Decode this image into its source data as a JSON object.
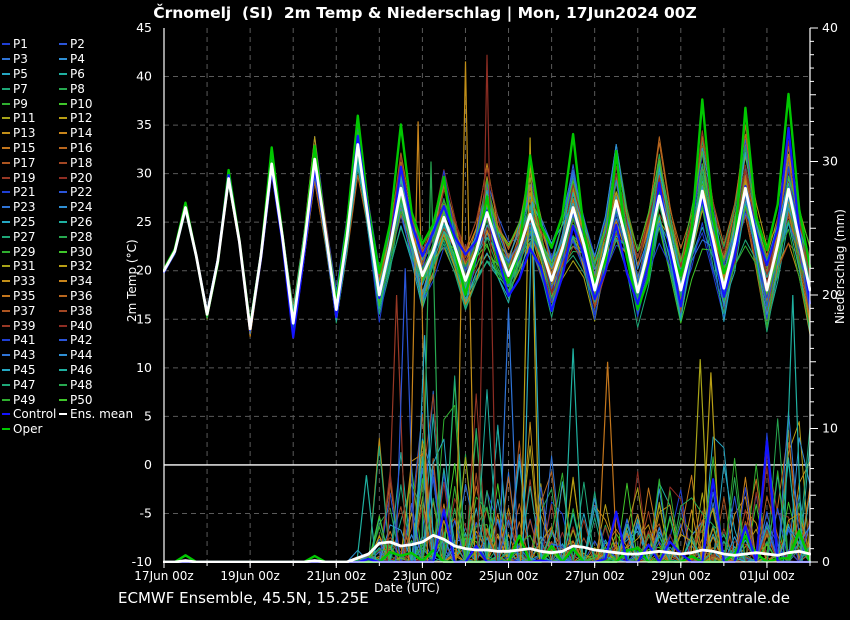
{
  "title": "Črnomelj  (SI)  2m Temp & Niederschlag | Mon, 17Jun2024 00Z",
  "footer": {
    "left": "ECMWF Ensemble, 45.5N, 15.25E",
    "right": "Wetterzentrale.de"
  },
  "legend": {
    "members": [
      "P1",
      "P2",
      "P3",
      "P4",
      "P5",
      "P6",
      "P7",
      "P8",
      "P9",
      "P10",
      "P11",
      "P12",
      "P13",
      "P14",
      "P15",
      "P16",
      "P17",
      "P18",
      "P19",
      "P20",
      "P21",
      "P22",
      "P23",
      "P24",
      "P25",
      "P26",
      "P27",
      "P28",
      "P29",
      "P30",
      "P31",
      "P32",
      "P33",
      "P34",
      "P35",
      "P36",
      "P37",
      "P38",
      "P39",
      "P40",
      "P41",
      "P42",
      "P43",
      "P44",
      "P45",
      "P46",
      "P47",
      "P48",
      "P49",
      "P50"
    ],
    "control_label": "Control",
    "ens_mean_label": "Ens. mean",
    "oper_label": "Oper"
  },
  "chart_data": {
    "type": "line",
    "title": "Črnomelj (SI) 2m Temp & Niederschlag | Mon, 17Jun2024 00Z",
    "xlabel": "Date (UTC)",
    "ylabel_left": "2m Temp (°C)",
    "ylabel_right": "Niederschlag (mm)",
    "x_range_days": [
      0,
      15
    ],
    "x_tick_days": [
      0,
      2,
      4,
      6,
      8,
      10,
      12,
      14
    ],
    "x_tick_labels": [
      "17Jun 00z",
      "19Jun 00z",
      "21Jun 00z",
      "23Jun 00z",
      "25Jun 00z",
      "27Jun 00z",
      "29Jun 00z",
      "01Jul 00z"
    ],
    "ylim_left": [
      -10,
      45
    ],
    "y_ticks_left": [
      45,
      40,
      35,
      30,
      25,
      20,
      15,
      10,
      5,
      0,
      -5,
      -10
    ],
    "ylim_right": [
      0,
      40
    ],
    "y_ticks_right": [
      40,
      30,
      20,
      10,
      0
    ],
    "grid": {
      "vertical_every_days": 1,
      "horizontal_every_degC": 5,
      "zero_line_degC": 0,
      "grid_color": "#5a5a5a"
    },
    "time_step_hours": 6,
    "n_members": 50,
    "member_colors": [
      "#1f3fd4",
      "#2b55d8",
      "#2f74d8",
      "#2f8fd4",
      "#25a8c4",
      "#1fb0a0",
      "#1ea878",
      "#27a850",
      "#2fae2f",
      "#3fc62a",
      "#a8a418",
      "#b89e14",
      "#c28f18",
      "#c9851b",
      "#c3761c",
      "#b9661e",
      "#ad5520",
      "#a24623",
      "#983825",
      "#8e2d23"
    ],
    "control_color": "#1414ff",
    "ens_mean_color": "#ffffff",
    "oper_color": "#00c800",
    "ens_mean_temp": [
      20.0,
      22.0,
      26.5,
      21.5,
      15.5,
      21.0,
      29.5,
      23.0,
      14.0,
      21.5,
      31.0,
      23.5,
      14.6,
      22.5,
      31.5,
      24.0,
      16.0,
      23.5,
      33.0,
      25.0,
      17.5,
      22.5,
      28.5,
      23.5,
      19.5,
      22.0,
      25.5,
      22.5,
      19.0,
      22.0,
      26.0,
      22.5,
      19.5,
      22.2,
      25.8,
      22.5,
      19.0,
      22.3,
      26.5,
      22.7,
      18.0,
      22.0,
      27.2,
      22.8,
      17.8,
      22.2,
      27.7,
      23.0,
      18.0,
      22.5,
      28.2,
      23.2,
      18.2,
      22.8,
      28.5,
      23.3,
      18.0,
      22.7,
      28.4,
      23.2,
      18.0
    ],
    "ens_mean_precip": [
      0,
      0,
      0.1,
      0,
      0,
      0,
      0,
      0,
      0,
      0,
      0,
      0,
      0,
      0,
      0.1,
      0,
      0,
      0,
      0.3,
      0.6,
      1.4,
      1.5,
      1.2,
      1.3,
      1.5,
      2.0,
      1.7,
      1.2,
      1.0,
      0.9,
      0.9,
      0.8,
      0.8,
      0.9,
      1.0,
      0.8,
      0.7,
      0.8,
      1.2,
      1.1,
      0.9,
      0.8,
      0.7,
      0.6,
      0.6,
      0.7,
      0.8,
      0.7,
      0.6,
      0.7,
      0.9,
      0.8,
      0.6,
      0.5,
      0.6,
      0.7,
      0.6,
      0.5,
      0.7,
      0.8,
      0.6
    ],
    "member_spread_by_day": [
      0.4,
      0.5,
      0.8,
      1.6,
      2.2,
      2.8,
      3.4,
      3.5,
      3.5,
      3.8,
      4.0,
      4.2,
      4.3,
      4.5,
      4.6,
      4.6
    ],
    "phase_factor": [
      1.0,
      0.9,
      1.45,
      0.9
    ],
    "precip_amp_by_day": [
      0,
      0,
      0,
      0,
      1,
      10,
      22,
      16,
      13,
      9,
      8,
      9,
      11,
      10,
      13,
      13
    ],
    "precip_start_day": 4.4,
    "oper_peak_boost": {
      "base": 0.5,
      "per_day": 0.4,
      "max": 6
    },
    "control_peak_boost": {
      "base": 0.0,
      "per_day": 0.16,
      "max": 2.2
    },
    "oper_precip_bumps": [
      {
        "day": 0.5,
        "mm": 0.5
      },
      {
        "day": 3.5,
        "mm": 0.45
      }
    ],
    "big_precip_spikes": [
      {
        "day": 4.7,
        "mm": 6.5,
        "color": "#1fb0a0"
      },
      {
        "day": 5.4,
        "mm": 20.0,
        "color": "#983825"
      },
      {
        "day": 5.6,
        "mm": 22.0,
        "color": "#2b55d8"
      },
      {
        "day": 5.9,
        "mm": 33.0,
        "color": "#c9851b"
      },
      {
        "day": 6.05,
        "mm": 17.0,
        "color": "#25a8c4"
      },
      {
        "day": 6.2,
        "mm": 30.0,
        "color": "#27a850"
      },
      {
        "day": 7.0,
        "mm": 37.5,
        "color": "#c28f18"
      },
      {
        "day": 7.5,
        "mm": 38.0,
        "color": "#8e2d23"
      },
      {
        "day": 8.0,
        "mm": 19.0,
        "color": "#2f74d8"
      },
      {
        "day": 8.5,
        "mm": 31.8,
        "color": "#b89e14"
      },
      {
        "day": 8.55,
        "mm": 27.0,
        "color": "#25a8c4"
      },
      {
        "day": 9.5,
        "mm": 16.0,
        "color": "#1fb0a0"
      },
      {
        "day": 10.3,
        "mm": 15.0,
        "color": "#c3761c"
      },
      {
        "day": 12.45,
        "mm": 15.2,
        "color": "#a8a418"
      },
      {
        "day": 12.7,
        "mm": 14.2,
        "color": "#b89e14"
      },
      {
        "day": 14.6,
        "mm": 20.0,
        "color": "#1fb0a0"
      }
    ]
  }
}
